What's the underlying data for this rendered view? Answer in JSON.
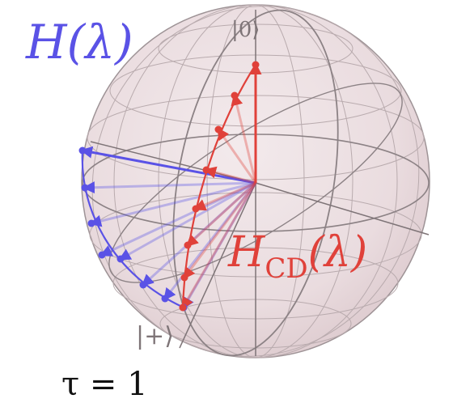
{
  "labels": {
    "H_base": "H",
    "H_arg": "(λ)",
    "Hcd_base": "H",
    "Hcd_sub": "CD",
    "Hcd_arg": "(λ)",
    "ket_zero": "|0⟩",
    "ket_plus": "|+⟩",
    "tau": "τ = 1"
  },
  "colors": {
    "blue": "#5a52e6",
    "red": "#e0413a",
    "sphere": "#ecdfe2",
    "grid": "#8c8285"
  }
}
